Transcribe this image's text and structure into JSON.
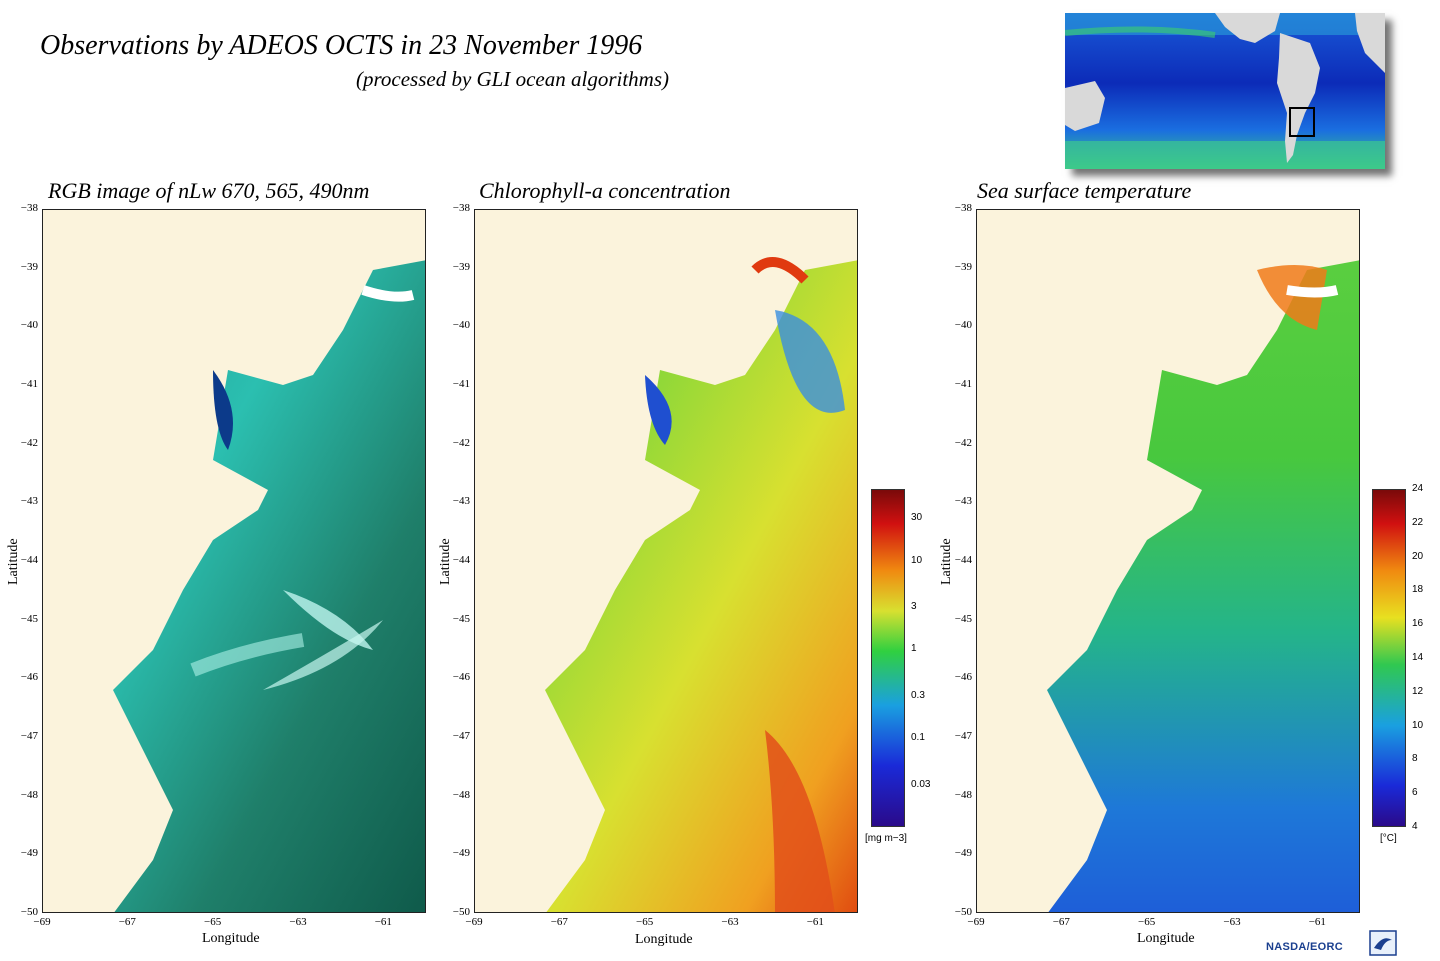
{
  "title": "Observations by ADEOS OCTS in 23 November 1996",
  "subtitle": "(processed by GLI ocean algorithms)",
  "panels": [
    {
      "title": "RGB image of nLw 670, 565, 490nm"
    },
    {
      "title": "Chlorophyll-a concentration"
    },
    {
      "title": "Sea surface temperature"
    }
  ],
  "axes": {
    "ylabel": "Latitude",
    "xlabel": "Longitude",
    "lat_ticks": [
      "−38",
      "−39",
      "−40",
      "−41",
      "−42",
      "−43",
      "−44",
      "−45",
      "−46",
      "−47",
      "−48",
      "−49",
      "−50"
    ],
    "lon_ticks": [
      "−69",
      "−67",
      "−65",
      "−63",
      "−61"
    ],
    "lat_range": [
      -50,
      -38
    ],
    "lon_range": [
      -69,
      -60
    ]
  },
  "colorbars": {
    "chlorophyll": {
      "ticks": [
        "30",
        "10",
        "3",
        "1",
        "0.3",
        "0.1",
        "0.03"
      ],
      "tick_values": [
        30,
        10,
        3,
        1,
        0.3,
        0.1,
        0.03
      ],
      "range": [
        0.01,
        64
      ],
      "scale": "log",
      "unit": "[mg m−3]"
    },
    "sst": {
      "ticks": [
        "24",
        "22",
        "20",
        "18",
        "16",
        "14",
        "12",
        "10",
        "8",
        "6",
        "4"
      ],
      "range": [
        4,
        24
      ],
      "unit": "[°C]"
    }
  },
  "colors": {
    "land": "#fbf3dc",
    "ocean_rgb": "#2fb7a6",
    "ocean_chl": "#8ed23a",
    "ocean_sst": "#2fae7a"
  },
  "logo": {
    "text": "NASDA/EORC"
  }
}
